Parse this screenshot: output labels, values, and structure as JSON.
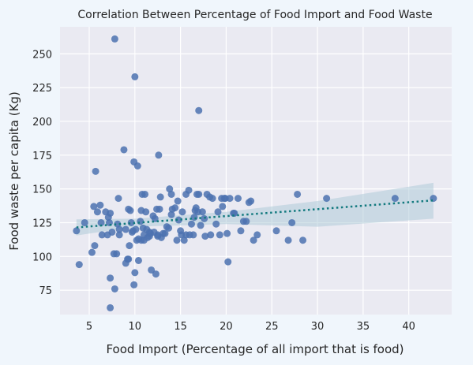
{
  "chart_data": {
    "type": "scatter",
    "title": "Correlation Between Percentage of Food Import and Food Waste",
    "xlabel": "Food Import (Percentage of all import that is food)",
    "ylabel": "Food waste per capita (Kg)",
    "xlim": [
      1.8,
      44.7
    ],
    "ylim": [
      57,
      270
    ],
    "xticks": [
      5,
      10,
      15,
      20,
      25,
      30,
      35,
      40
    ],
    "yticks": [
      75,
      100,
      125,
      150,
      175,
      200,
      225,
      250
    ],
    "grid": true,
    "background": "#eaeaf2",
    "point_color": "#4c72b0",
    "trend_color": "#137a7f",
    "band_color": "#a9c7d6",
    "trend": {
      "x": [
        3.6,
        42.7
      ],
      "y": [
        121.5,
        141.5
      ]
    },
    "band": {
      "x": [
        3.6,
        10,
        20,
        30,
        42.7
      ],
      "lower": [
        115.5,
        122,
        124,
        122,
        128
      ],
      "upper": [
        127.5,
        128,
        133,
        141,
        154.5
      ]
    },
    "points": [
      [
        3.6,
        119
      ],
      [
        3.9,
        94
      ],
      [
        4.5,
        125
      ],
      [
        5.3,
        103
      ],
      [
        5.5,
        137
      ],
      [
        5.6,
        108
      ],
      [
        5.7,
        163
      ],
      [
        5.9,
        133
      ],
      [
        6.2,
        138
      ],
      [
        6.3,
        125
      ],
      [
        6.4,
        116
      ],
      [
        6.8,
        133
      ],
      [
        7.0,
        116
      ],
      [
        7.1,
        129
      ],
      [
        7.2,
        125
      ],
      [
        7.3,
        132
      ],
      [
        7.3,
        84
      ],
      [
        7.3,
        62
      ],
      [
        7.5,
        118
      ],
      [
        7.7,
        102
      ],
      [
        7.8,
        76
      ],
      [
        7.8,
        261
      ],
      [
        8.0,
        102
      ],
      [
        8.1,
        124
      ],
      [
        8.2,
        143
      ],
      [
        8.3,
        116
      ],
      [
        8.3,
        120
      ],
      [
        8.8,
        179
      ],
      [
        9.0,
        120
      ],
      [
        9.0,
        95
      ],
      [
        9.2,
        98
      ],
      [
        9.3,
        98
      ],
      [
        9.3,
        135
      ],
      [
        9.4,
        108
      ],
      [
        9.5,
        134
      ],
      [
        9.6,
        125
      ],
      [
        9.7,
        118
      ],
      [
        9.8,
        119
      ],
      [
        9.9,
        170
      ],
      [
        9.9,
        79
      ],
      [
        10.0,
        88
      ],
      [
        10.0,
        233
      ],
      [
        10.1,
        120
      ],
      [
        10.2,
        112
      ],
      [
        10.3,
        167
      ],
      [
        10.4,
        97
      ],
      [
        10.4,
        113
      ],
      [
        10.6,
        126
      ],
      [
        10.7,
        112
      ],
      [
        10.7,
        134
      ],
      [
        10.8,
        146
      ],
      [
        10.9,
        121
      ],
      [
        11.0,
        116
      ],
      [
        11.0,
        112
      ],
      [
        11.1,
        146
      ],
      [
        11.2,
        133
      ],
      [
        11.3,
        120
      ],
      [
        11.4,
        114
      ],
      [
        11.6,
        118
      ],
      [
        11.6,
        115
      ],
      [
        11.7,
        117
      ],
      [
        11.8,
        90
      ],
      [
        12.0,
        130
      ],
      [
        12.1,
        118
      ],
      [
        12.2,
        128
      ],
      [
        12.3,
        87
      ],
      [
        12.4,
        135
      ],
      [
        12.5,
        116
      ],
      [
        12.5,
        115
      ],
      [
        12.6,
        175
      ],
      [
        12.7,
        135
      ],
      [
        12.8,
        144
      ],
      [
        12.9,
        114
      ],
      [
        13.1,
        117
      ],
      [
        13.3,
        117
      ],
      [
        13.5,
        122
      ],
      [
        13.7,
        121
      ],
      [
        13.8,
        150
      ],
      [
        14.0,
        146
      ],
      [
        14.0,
        131
      ],
      [
        14.1,
        135
      ],
      [
        14.4,
        136
      ],
      [
        14.6,
        112
      ],
      [
        14.7,
        141
      ],
      [
        14.8,
        127
      ],
      [
        15.0,
        119
      ],
      [
        15.1,
        116
      ],
      [
        15.2,
        133
      ],
      [
        15.4,
        112
      ],
      [
        15.6,
        116
      ],
      [
        15.6,
        146
      ],
      [
        15.9,
        149
      ],
      [
        16.0,
        116
      ],
      [
        16.2,
        124
      ],
      [
        16.4,
        116
      ],
      [
        16.5,
        129
      ],
      [
        16.6,
        134
      ],
      [
        16.7,
        136
      ],
      [
        16.8,
        146
      ],
      [
        16.9,
        133
      ],
      [
        17.0,
        146
      ],
      [
        17.0,
        208
      ],
      [
        17.2,
        123
      ],
      [
        17.4,
        133
      ],
      [
        17.6,
        128
      ],
      [
        17.7,
        115
      ],
      [
        17.9,
        146
      ],
      [
        18.2,
        144
      ],
      [
        18.3,
        116
      ],
      [
        18.5,
        143
      ],
      [
        18.9,
        124
      ],
      [
        19.1,
        133
      ],
      [
        19.3,
        116
      ],
      [
        19.5,
        143
      ],
      [
        19.6,
        137
      ],
      [
        19.8,
        143
      ],
      [
        19.9,
        143
      ],
      [
        20.1,
        117
      ],
      [
        20.2,
        96
      ],
      [
        20.4,
        143
      ],
      [
        20.8,
        132
      ],
      [
        20.9,
        132
      ],
      [
        21.3,
        143
      ],
      [
        21.6,
        119
      ],
      [
        21.9,
        126
      ],
      [
        22.2,
        126
      ],
      [
        22.5,
        140
      ],
      [
        22.7,
        141
      ],
      [
        23.0,
        112
      ],
      [
        23.4,
        116
      ],
      [
        25.5,
        119
      ],
      [
        26.8,
        112
      ],
      [
        27.2,
        125
      ],
      [
        27.8,
        146
      ],
      [
        28.4,
        112
      ],
      [
        31.0,
        143
      ],
      [
        38.5,
        143
      ],
      [
        42.7,
        143
      ]
    ]
  }
}
